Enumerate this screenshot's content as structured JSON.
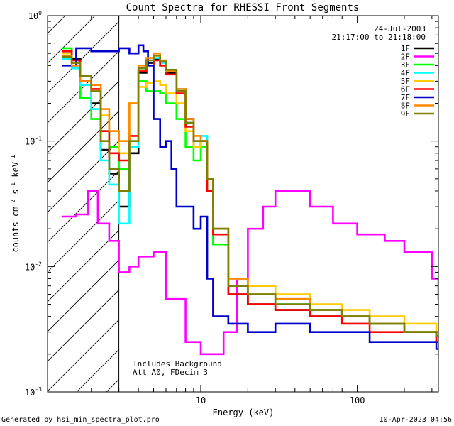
{
  "chart_data": {
    "type": "line",
    "title": "Count Spectra for RHESSI Front Segments",
    "xlabel": "Energy (keV)",
    "ylabel": "counts cm",
    "ylabel_sup1": "-2",
    "ylabel_mid": " s",
    "ylabel_sup2": "-1",
    "ylabel_end": " keV",
    "ylabel_sup3": "-1",
    "x_scale": "log",
    "y_scale": "log",
    "xlim": [
      1.05,
      330
    ],
    "ylim": [
      0.001,
      1
    ],
    "x_ticks": [
      {
        "value": 10,
        "label": "10"
      },
      {
        "value": 100,
        "label": "100"
      }
    ],
    "y_ticks": [
      {
        "value": 1,
        "base": "10",
        "exp": "0"
      },
      {
        "value": 0.1,
        "base": "10",
        "exp": "-1"
      },
      {
        "value": 0.01,
        "base": "10",
        "exp": "-2"
      },
      {
        "value": 0.001,
        "base": "10",
        "exp": "-3"
      }
    ],
    "legend_position": "top-right",
    "date": "24-Jul-2003",
    "time_range": "21:17:00 to 21:18:00",
    "attenuator_note_1": "Includes Background",
    "attenuator_note_2": "Att A0, FDecim 3",
    "hatched_below_kev": 3,
    "series": [
      {
        "name": "1F",
        "color": "#000000",
        "x": [
          1.3,
          1.5,
          1.7,
          2.0,
          2.3,
          2.6,
          3.0,
          3.5,
          4.0,
          4.5,
          5.0,
          5.5,
          6.0,
          7.0,
          8.0,
          9.0,
          10.0,
          11.0,
          12.0,
          15.0,
          20.0,
          30.0,
          50.0,
          80.0,
          120.0,
          200.0,
          320.0
        ],
        "y": [
          0.5,
          0.45,
          0.3,
          0.2,
          0.085,
          0.055,
          0.03,
          0.08,
          0.35,
          0.42,
          0.45,
          0.4,
          0.35,
          0.25,
          0.15,
          0.09,
          0.1,
          0.05,
          0.02,
          0.006,
          0.005,
          0.0045,
          0.004,
          0.004,
          0.0035,
          0.003,
          0.0025
        ]
      },
      {
        "name": "2F",
        "color": "#ff00ff",
        "x": [
          1.3,
          1.6,
          1.9,
          2.2,
          2.6,
          3.0,
          3.5,
          4.0,
          5.0,
          6.0,
          8.0,
          10.0,
          12.0,
          14.0,
          17.0,
          20.0,
          25.0,
          30.0,
          40.0,
          50.0,
          70.0,
          100.0,
          150.0,
          200.0,
          300.0,
          330.0
        ],
        "y": [
          0.025,
          0.026,
          0.04,
          0.022,
          0.016,
          0.009,
          0.01,
          0.012,
          0.013,
          0.0055,
          0.0025,
          0.002,
          0.002,
          0.003,
          0.008,
          0.02,
          0.03,
          0.04,
          0.04,
          0.03,
          0.022,
          0.018,
          0.016,
          0.013,
          0.008,
          0.0055
        ]
      },
      {
        "name": "3F",
        "color": "#00ff00",
        "x": [
          1.3,
          1.5,
          1.7,
          2.0,
          2.3,
          2.6,
          3.0,
          3.5,
          4.0,
          4.5,
          5.0,
          5.5,
          6.0,
          7.0,
          8.0,
          9.0,
          10.0,
          11.0,
          12.0,
          15.0,
          20.0,
          30.0,
          50.0,
          80.0,
          120.0,
          200.0,
          320.0
        ],
        "y": [
          0.55,
          0.4,
          0.22,
          0.15,
          0.12,
          0.09,
          0.06,
          0.1,
          0.3,
          0.25,
          0.25,
          0.24,
          0.2,
          0.15,
          0.09,
          0.07,
          0.09,
          0.04,
          0.015,
          0.007,
          0.006,
          0.005,
          0.0045,
          0.004,
          0.0035,
          0.003,
          0.003
        ]
      },
      {
        "name": "4F",
        "color": "#00ffff",
        "x": [
          1.3,
          1.5,
          1.7,
          2.0,
          2.3,
          2.6,
          3.0,
          3.5,
          4.0,
          4.5,
          5.0,
          5.5,
          6.0,
          7.0,
          8.0,
          9.0,
          10.0,
          11.0,
          12.0,
          15.0,
          20.0,
          30.0,
          50.0,
          80.0,
          120.0,
          200.0,
          320.0
        ],
        "y": [
          0.45,
          0.38,
          0.28,
          0.18,
          0.07,
          0.045,
          0.022,
          0.09,
          0.38,
          0.44,
          0.46,
          0.42,
          0.36,
          0.26,
          0.14,
          0.1,
          0.11,
          0.05,
          0.02,
          0.007,
          0.006,
          0.005,
          0.0045,
          0.004,
          0.0035,
          0.003,
          0.003
        ]
      },
      {
        "name": "5F",
        "color": "#ffcc00",
        "x": [
          1.3,
          1.5,
          1.7,
          2.0,
          2.3,
          2.6,
          3.0,
          3.5,
          4.0,
          4.5,
          5.0,
          5.5,
          6.0,
          7.0,
          8.0,
          9.0,
          10.0,
          11.0,
          12.0,
          15.0,
          20.0,
          30.0,
          50.0,
          80.0,
          120.0,
          200.0,
          320.0
        ],
        "y": [
          0.5,
          0.42,
          0.3,
          0.25,
          0.16,
          0.12,
          0.08,
          0.2,
          0.27,
          0.29,
          0.3,
          0.28,
          0.24,
          0.2,
          0.12,
          0.09,
          0.1,
          0.05,
          0.02,
          0.008,
          0.007,
          0.006,
          0.005,
          0.0045,
          0.004,
          0.0035,
          0.003
        ]
      },
      {
        "name": "6F",
        "color": "#ff0000",
        "x": [
          1.3,
          1.5,
          1.7,
          2.0,
          2.3,
          2.6,
          3.0,
          3.5,
          4.0,
          4.5,
          5.0,
          5.5,
          6.0,
          7.0,
          8.0,
          9.0,
          10.0,
          11.0,
          12.0,
          15.0,
          20.0,
          30.0,
          50.0,
          80.0,
          120.0,
          200.0,
          320.0
        ],
        "y": [
          0.52,
          0.44,
          0.3,
          0.26,
          0.12,
          0.08,
          0.07,
          0.11,
          0.36,
          0.4,
          0.44,
          0.4,
          0.34,
          0.24,
          0.13,
          0.1,
          0.1,
          0.04,
          0.018,
          0.006,
          0.005,
          0.0045,
          0.004,
          0.0035,
          0.003,
          0.003,
          0.0025
        ]
      },
      {
        "name": "7F",
        "color": "#0000cc",
        "x": [
          1.3,
          1.6,
          2.0,
          2.5,
          3.0,
          3.5,
          4.0,
          4.3,
          4.6,
          5.0,
          5.5,
          6.0,
          6.5,
          7.0,
          8.0,
          9.0,
          10.0,
          11.0,
          12.0,
          15.0,
          20.0,
          30.0,
          50.0,
          80.0,
          120.0,
          200.0,
          320.0
        ],
        "y": [
          0.4,
          0.55,
          0.52,
          0.52,
          0.55,
          0.5,
          0.58,
          0.52,
          0.4,
          0.15,
          0.09,
          0.1,
          0.06,
          0.03,
          0.03,
          0.02,
          0.025,
          0.008,
          0.004,
          0.0035,
          0.003,
          0.0035,
          0.003,
          0.003,
          0.0025,
          0.0025,
          0.0022
        ]
      },
      {
        "name": "8F",
        "color": "#ff8800",
        "x": [
          1.3,
          1.5,
          1.7,
          2.0,
          2.3,
          2.6,
          3.0,
          3.5,
          4.0,
          4.5,
          5.0,
          5.5,
          6.0,
          7.0,
          8.0,
          9.0,
          10.0,
          11.0,
          12.0,
          15.0,
          20.0,
          30.0,
          50.0,
          80.0,
          120.0,
          200.0,
          320.0
        ],
        "y": [
          0.48,
          0.4,
          0.3,
          0.28,
          0.18,
          0.12,
          0.1,
          0.2,
          0.4,
          0.46,
          0.5,
          0.44,
          0.36,
          0.26,
          0.15,
          0.11,
          0.1,
          0.05,
          0.02,
          0.008,
          0.006,
          0.0055,
          0.0045,
          0.004,
          0.0035,
          0.003,
          0.003
        ]
      },
      {
        "name": "9F",
        "color": "#808000",
        "x": [
          1.3,
          1.5,
          1.7,
          2.0,
          2.3,
          2.6,
          3.0,
          3.5,
          4.0,
          4.5,
          5.0,
          5.5,
          6.0,
          7.0,
          8.0,
          9.0,
          10.0,
          11.0,
          12.0,
          15.0,
          20.0,
          30.0,
          50.0,
          80.0,
          120.0,
          200.0,
          320.0
        ],
        "y": [
          0.47,
          0.42,
          0.33,
          0.25,
          0.1,
          0.06,
          0.04,
          0.1,
          0.38,
          0.44,
          0.48,
          0.43,
          0.37,
          0.25,
          0.14,
          0.1,
          0.1,
          0.05,
          0.02,
          0.007,
          0.006,
          0.005,
          0.0045,
          0.004,
          0.0035,
          0.003,
          0.0028
        ]
      }
    ]
  },
  "footer": {
    "generated_by": "Generated by hsi_min_spectra_plot.pro",
    "timestamp": "10-Apr-2023 04:56"
  }
}
